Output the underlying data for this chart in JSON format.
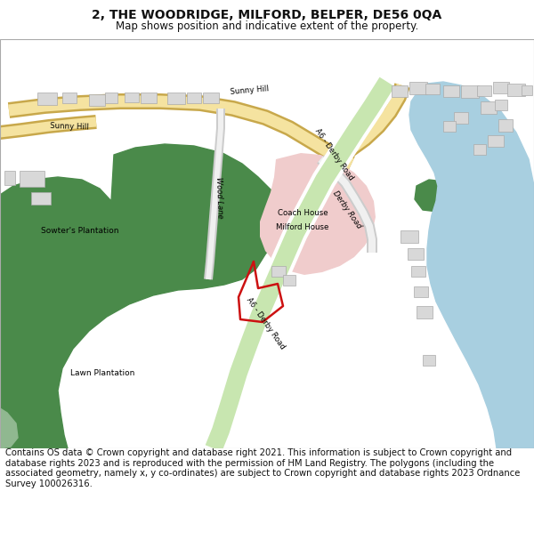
{
  "title": "2, THE WOODRIDGE, MILFORD, BELPER, DE56 0QA",
  "subtitle": "Map shows position and indicative extent of the property.",
  "footer": "Contains OS data © Crown copyright and database right 2021. This information is subject to Crown copyright and database rights 2023 and is reproduced with the permission of HM Land Registry. The polygons (including the associated geometry, namely x, y co-ordinates) are subject to Crown copyright and database rights 2023 Ordnance Survey 100026316.",
  "road_yellow_fill": "#f5e3a0",
  "road_yellow_border": "#c8a84b",
  "road_green_fill": "#c8e6b0",
  "road_green_border": "#88bb88",
  "river_color": "#a8cfe0",
  "green_dark": "#4a8a4a",
  "green_pale": "#90b890",
  "pink_area": "#f0cccc",
  "building_color": "#d8d8d8",
  "building_border": "#aaaaaa",
  "plot_color": "#cc1111",
  "text_color": "#111111",
  "title_fontsize": 10,
  "subtitle_fontsize": 8.5,
  "footer_fontsize": 7.2
}
